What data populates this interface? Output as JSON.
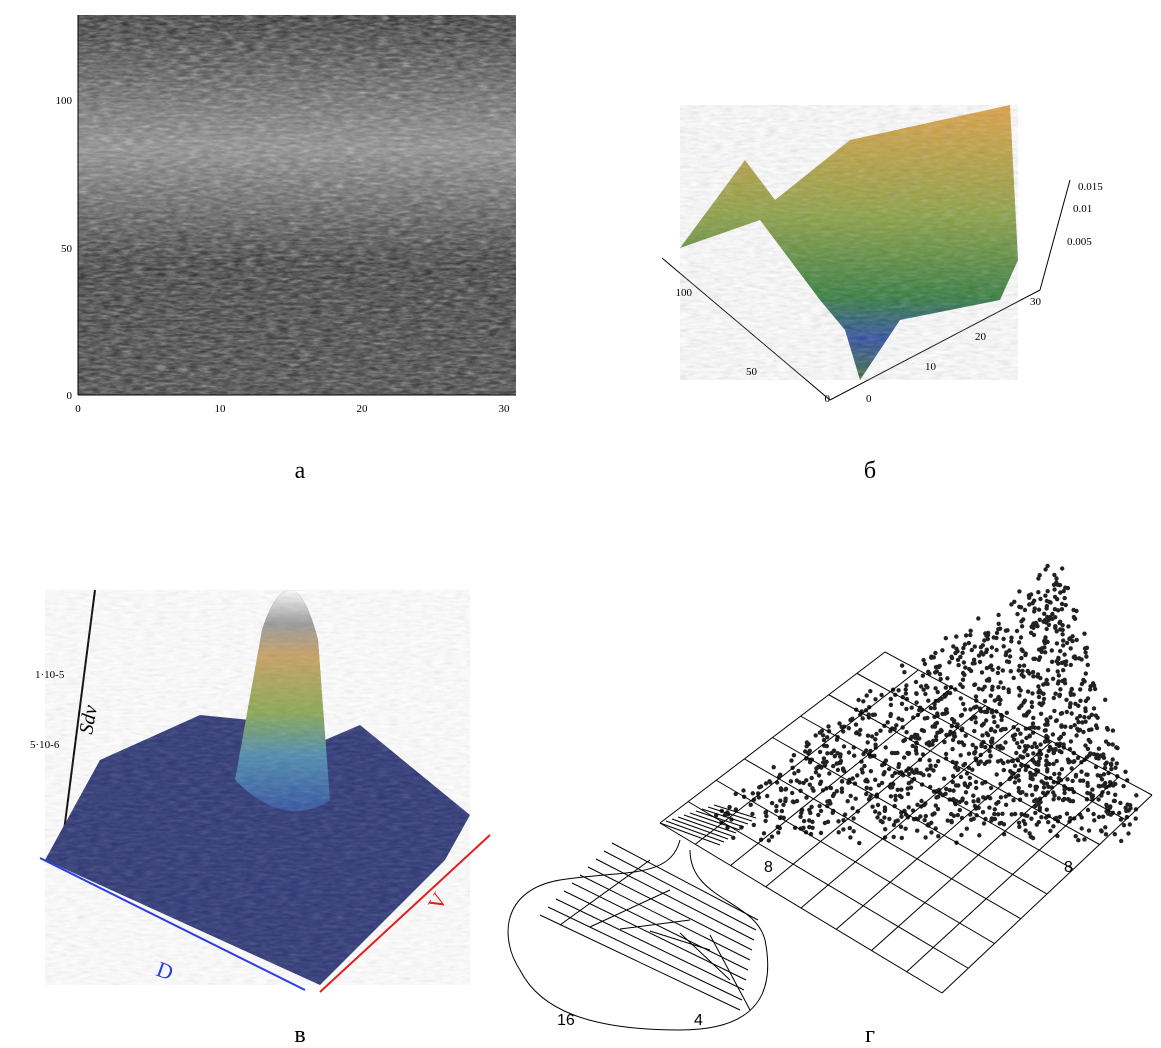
{
  "panels": [
    {
      "caption": "а",
      "y_ticks": [
        "0",
        "50",
        "100"
      ],
      "x_ticks": [
        "0",
        "10",
        "20",
        "30"
      ]
    },
    {
      "caption": "б",
      "z_ticks": [
        "0.005",
        "0.01",
        "0.015"
      ],
      "y_ticks": [
        "0",
        "50",
        "100"
      ],
      "x_ticks": [
        "0",
        "10",
        "20",
        "30"
      ]
    },
    {
      "caption": "в",
      "z_ticks": [
        "5·10-6",
        "1·10-5"
      ],
      "z_label": "Sdv",
      "x_label": "D",
      "y_label": "V"
    },
    {
      "caption": "г",
      "labels": [
        "8",
        "8",
        "16",
        "4"
      ]
    }
  ]
}
